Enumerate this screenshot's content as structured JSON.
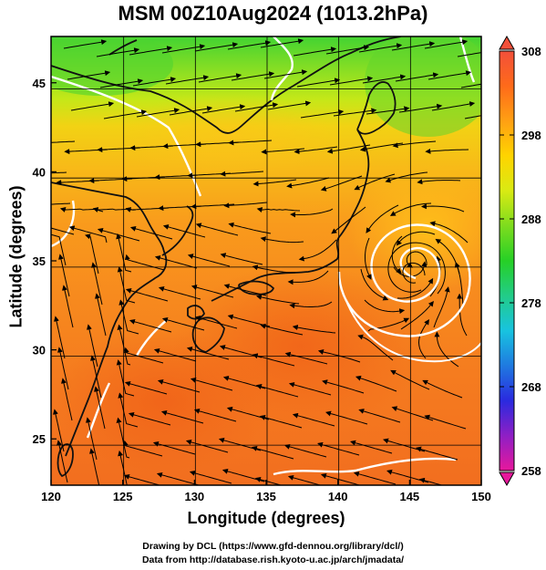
{
  "title": "MSM 00Z10Aug2024 (1013.2hPa)",
  "x_axis": {
    "label": "Longitude (degrees)",
    "ticks": [
      "120",
      "125",
      "130",
      "135",
      "140",
      "145",
      "150"
    ],
    "range": [
      120,
      150
    ]
  },
  "y_axis": {
    "label": "Latitude  (degrees)",
    "ticks": [
      "25",
      "30",
      "35",
      "40",
      "45"
    ],
    "range": [
      22.4,
      47.6
    ]
  },
  "colorbar": {
    "ticks": [
      "308",
      "298",
      "288",
      "278",
      "268",
      "258"
    ],
    "range": [
      258,
      308
    ],
    "colors": [
      "#e7189c",
      "#8f1fc5",
      "#2a2adf",
      "#1f7ae0",
      "#18c3e0",
      "#22cc88",
      "#26d026",
      "#7ddc1e",
      "#d9ea13",
      "#ffd400",
      "#ffa013",
      "#ff6a1a",
      "#f2503a"
    ]
  },
  "credits": {
    "line1": "Drawing by DCL (https://www.gfd-dennou.org/library/dcl/)",
    "line2": "Data from http://database.rish.kyoto-u.ac.jp/arch/jmadata/"
  },
  "map": {
    "features": [
      "temperature-field",
      "coastlines",
      "streamlines",
      "typhoon-vortex",
      "grid"
    ],
    "vortex_center_lon_lat": [
      145.3,
      35.0
    ]
  }
}
